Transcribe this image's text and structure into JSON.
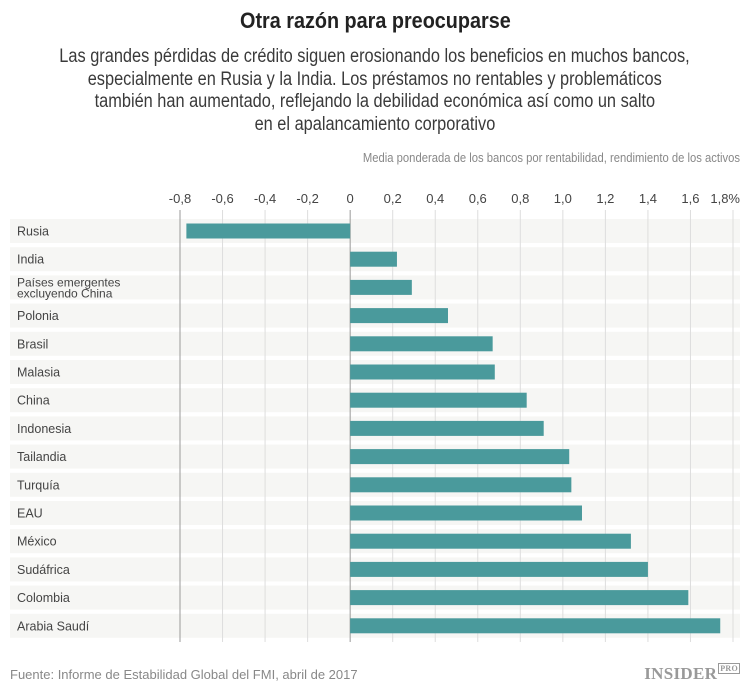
{
  "title": "Otra razón para preocuparse",
  "subtitle_lines": [
    "Las grandes pérdidas de crédito siguen erosionando los beneficios en muchos bancos,",
    "especialmente en Rusia y la India. Los préstamos no rentables y problemáticos",
    "también han aumentado, reflejando la debilidad económica así como un salto",
    "en el apalancamiento corporativo"
  ],
  "note": "Media ponderada de los bancos por rentabilidad, rendimiento de los activos",
  "footer": {
    "source": "Fuente: Informe de Estabilidad Global del FMI, abril de 2017",
    "logo": "INSIDER",
    "logo_badge": "PRO"
  },
  "chart_data": {
    "type": "bar",
    "orientation": "horizontal",
    "categories": [
      "Rusia",
      "India",
      "Países emergentes\nexcluyendo China",
      "Polonia",
      "Brasil",
      "Malasia",
      "China",
      "Indonesia",
      "Tailandia",
      "Turquía",
      "EAU",
      "México",
      "Sudáfrica",
      "Colombia",
      "Arabia Saudí"
    ],
    "values": [
      -0.77,
      0.22,
      0.29,
      0.46,
      0.67,
      0.68,
      0.83,
      0.91,
      1.03,
      1.04,
      1.09,
      1.32,
      1.4,
      1.59,
      1.74
    ],
    "xlim": [
      -0.8,
      1.8
    ],
    "ticks": [
      -0.8,
      -0.6,
      -0.4,
      -0.2,
      0,
      0.2,
      0.4,
      0.6,
      0.8,
      1.0,
      1.2,
      1.4,
      1.6,
      1.8
    ],
    "tick_labels": [
      "-0,8",
      "-0,6",
      "-0,4",
      "-0,2",
      "0",
      "0,2",
      "0,4",
      "0,6",
      "0,8",
      "1,0",
      "1,2",
      "1,4",
      "1,6",
      "1,8%"
    ],
    "axis_position": "top",
    "grid": true,
    "bar_color": "#4a9a9c",
    "row_band_color": "#f6f6f4"
  }
}
